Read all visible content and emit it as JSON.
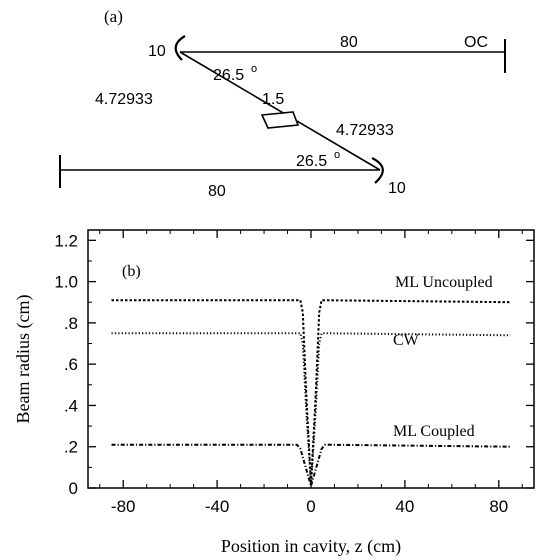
{
  "diagram_a": {
    "panel_label": "(a)",
    "labels": {
      "top_mirror_radius": "10",
      "top_arm_length": "80",
      "output_coupler": "OC",
      "top_angle": "26.5",
      "top_angle_unit": "o",
      "left_fold_length": "4.72933",
      "crystal_length": "1.5",
      "right_fold_length": "4.72933",
      "bottom_angle": "26.5",
      "bottom_angle_unit": "o",
      "bottom_arm_length": "80",
      "bottom_mirror_radius": "10"
    }
  },
  "chart_data": {
    "type": "line",
    "panel_label": "(b)",
    "xlabel": "Position in cavity, z (cm)",
    "ylabel": "Beam radius (cm)",
    "xlim": [
      -95,
      95
    ],
    "ylim": [
      0,
      1.25
    ],
    "x_ticks": [
      -80,
      -40,
      0,
      40,
      80
    ],
    "x_tick_labels": [
      "-80",
      "-40",
      "0",
      "40",
      "80"
    ],
    "y_ticks": [
      0,
      0.2,
      0.4,
      0.6,
      0.8,
      1.0,
      1.2
    ],
    "y_tick_labels": [
      "0",
      ".2",
      ".4",
      ".6",
      ".8",
      "1.0",
      "1.2"
    ],
    "grid": false,
    "legend": "inline-labels",
    "series": [
      {
        "name": "ML Uncoupled",
        "style": "dashed-fine",
        "x": [
          -85,
          -4.5,
          -3.5,
          -2,
          0,
          2,
          3.5,
          4.5,
          85
        ],
        "y": [
          0.91,
          0.91,
          0.85,
          0.45,
          0.02,
          0.45,
          0.85,
          0.91,
          0.9
        ]
      },
      {
        "name": "CW",
        "style": "dotted",
        "x": [
          -85,
          -4.5,
          -3.5,
          -2,
          0,
          2,
          3.5,
          4.5,
          85
        ],
        "y": [
          0.75,
          0.75,
          0.7,
          0.37,
          0.02,
          0.37,
          0.7,
          0.75,
          0.74
        ]
      },
      {
        "name": "ML Coupled",
        "style": "dash-dot",
        "x": [
          -85,
          -6,
          -4.5,
          -2.5,
          0,
          2.5,
          4.5,
          6,
          85
        ],
        "y": [
          0.21,
          0.21,
          0.19,
          0.11,
          0.01,
          0.11,
          0.19,
          0.21,
          0.2
        ]
      }
    ]
  }
}
